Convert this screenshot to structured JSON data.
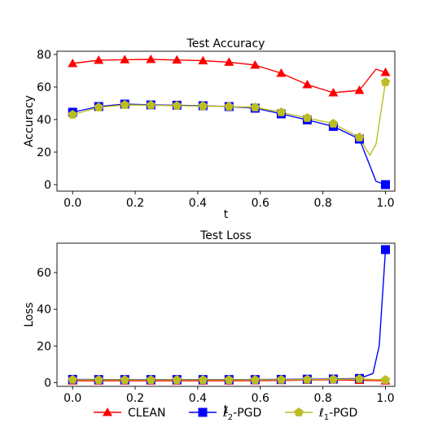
{
  "chart_data": [
    {
      "type": "line",
      "title": "Test Accuracy",
      "xlabel": "t",
      "ylabel": "Accuracy",
      "xlim": [
        -0.05,
        1.03
      ],
      "ylim": [
        -4,
        82
      ],
      "xticks": [
        {
          "value": 0.0,
          "label": "0.0"
        },
        {
          "value": 0.2,
          "label": "0.2"
        },
        {
          "value": 0.4,
          "label": "0.4"
        },
        {
          "value": 0.6,
          "label": "0.6"
        },
        {
          "value": 0.8,
          "label": "0.8"
        },
        {
          "value": 1.0,
          "label": "1.0"
        }
      ],
      "yticks": [
        {
          "value": 0,
          "label": "0"
        },
        {
          "value": 20,
          "label": "20"
        },
        {
          "value": 40,
          "label": "40"
        },
        {
          "value": 60,
          "label": "60"
        },
        {
          "value": 80,
          "label": "80"
        }
      ],
      "grid": false,
      "series": [
        {
          "name": "CLEAN",
          "color": "#ff0000",
          "marker": "triangle",
          "x": [
            0.0,
            0.0833,
            0.1667,
            0.25,
            0.3333,
            0.4167,
            0.5,
            0.5833,
            0.6667,
            0.75,
            0.8333,
            0.9167,
            0.97,
            1.0
          ],
          "y": [
            74.5,
            76.5,
            76.8,
            77.0,
            76.6,
            76.2,
            75.3,
            73.5,
            68.5,
            61.5,
            56.5,
            58.0,
            71.0,
            69.0
          ],
          "marked": [
            true,
            true,
            true,
            true,
            true,
            true,
            true,
            true,
            true,
            true,
            true,
            true,
            false,
            true
          ]
        },
        {
          "name": "ℓ2-PGD",
          "color": "#0000ff",
          "marker": "square",
          "x": [
            0.0,
            0.0833,
            0.1667,
            0.25,
            0.3333,
            0.4167,
            0.5,
            0.5833,
            0.6667,
            0.75,
            0.8333,
            0.9167,
            0.97,
            1.0
          ],
          "y": [
            44.5,
            48.0,
            49.5,
            49.0,
            48.8,
            48.5,
            48.0,
            47.0,
            43.5,
            39.8,
            35.8,
            28.0,
            2.0,
            0.0
          ],
          "marked": [
            true,
            true,
            true,
            true,
            true,
            true,
            true,
            true,
            true,
            true,
            true,
            true,
            false,
            true
          ]
        },
        {
          "name": "ℓ1-PGD",
          "color": "#bcbd22",
          "marker": "pentagon",
          "x": [
            0.0,
            0.0833,
            0.1667,
            0.25,
            0.3333,
            0.4167,
            0.5,
            0.5833,
            0.6667,
            0.75,
            0.8333,
            0.9167,
            0.95,
            0.97,
            1.0
          ],
          "y": [
            43.0,
            47.5,
            49.0,
            48.8,
            48.5,
            48.3,
            48.0,
            47.5,
            44.5,
            41.0,
            37.5,
            29.0,
            18.0,
            25.0,
            63.0
          ],
          "marked": [
            true,
            true,
            true,
            true,
            true,
            true,
            true,
            true,
            true,
            true,
            true,
            true,
            false,
            false,
            true
          ]
        }
      ]
    },
    {
      "type": "line",
      "title": "Test Loss",
      "xlabel": "t",
      "ylabel": "Loss",
      "xlim": [
        -0.05,
        1.03
      ],
      "ylim": [
        -2,
        76
      ],
      "xticks": [
        {
          "value": 0.0,
          "label": "0.0"
        },
        {
          "value": 0.2,
          "label": "0.2"
        },
        {
          "value": 0.4,
          "label": "0.4"
        },
        {
          "value": 0.6,
          "label": "0.6"
        },
        {
          "value": 0.8,
          "label": "0.8"
        },
        {
          "value": 1.0,
          "label": "1.0"
        }
      ],
      "yticks": [
        {
          "value": 0,
          "label": "0"
        },
        {
          "value": 20,
          "label": "20"
        },
        {
          "value": 40,
          "label": "40"
        },
        {
          "value": 60,
          "label": "60"
        }
      ],
      "grid": false,
      "series": [
        {
          "name": "CLEAN",
          "color": "#ff0000",
          "marker": "triangle",
          "x": [
            0.0,
            0.0833,
            0.1667,
            0.25,
            0.3333,
            0.4167,
            0.5,
            0.5833,
            0.6667,
            0.75,
            0.8333,
            0.9167,
            1.0
          ],
          "y": [
            1.0,
            1.0,
            1.0,
            1.0,
            1.0,
            1.0,
            1.0,
            1.1,
            1.2,
            1.4,
            1.5,
            1.3,
            1.0
          ],
          "marked": [
            true,
            true,
            true,
            true,
            true,
            true,
            true,
            true,
            true,
            true,
            true,
            true,
            true
          ]
        },
        {
          "name": "ℓ2-PGD",
          "color": "#0000ff",
          "marker": "square",
          "x": [
            0.0,
            0.0833,
            0.1667,
            0.25,
            0.3333,
            0.4167,
            0.5,
            0.5833,
            0.6667,
            0.75,
            0.8333,
            0.9167,
            0.96,
            0.98,
            1.0
          ],
          "y": [
            1.8,
            1.7,
            1.7,
            1.7,
            1.7,
            1.7,
            1.7,
            1.7,
            1.8,
            1.9,
            2.0,
            2.3,
            5.0,
            20.0,
            72.5
          ],
          "marked": [
            true,
            true,
            true,
            true,
            true,
            true,
            true,
            true,
            true,
            true,
            true,
            true,
            false,
            false,
            true
          ]
        },
        {
          "name": "ℓ1-PGD",
          "color": "#bcbd22",
          "marker": "pentagon",
          "x": [
            0.0,
            0.0833,
            0.1667,
            0.25,
            0.3333,
            0.4167,
            0.5,
            0.5833,
            0.6667,
            0.75,
            0.8333,
            0.9167,
            1.0
          ],
          "y": [
            1.6,
            1.5,
            1.5,
            1.5,
            1.5,
            1.5,
            1.5,
            1.5,
            1.6,
            1.7,
            1.8,
            2.0,
            1.5
          ],
          "marked": [
            true,
            true,
            true,
            true,
            true,
            true,
            true,
            true,
            true,
            true,
            true,
            true,
            true
          ]
        }
      ]
    }
  ],
  "legend": {
    "placement": "bottom-center",
    "entries": [
      {
        "base": "CLEAN",
        "sub": "",
        "rest": "",
        "color": "#ff0000",
        "marker": "triangle"
      },
      {
        "base": "ℓ",
        "sub": "2",
        "rest": "-PGD",
        "color": "#0000ff",
        "marker": "square"
      },
      {
        "base": "ℓ",
        "sub": "1",
        "rest": "-PGD",
        "color": "#bcbd22",
        "marker": "pentagon"
      }
    ]
  }
}
